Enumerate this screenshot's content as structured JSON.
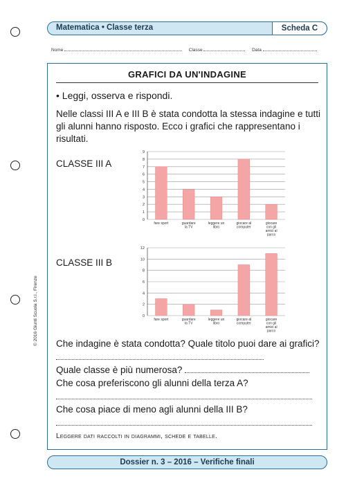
{
  "header": {
    "title": "Matematica • Classe terza",
    "tab": "Scheda C"
  },
  "fields": {
    "name": "Nome",
    "class": "Classe",
    "date": "Data"
  },
  "worksheet": {
    "title": "GRAFICI DA UN'INDAGINE",
    "instruction": "• Leggi, osserva e rispondi.",
    "intro": "Nelle classi III A e III B è stata condotta la stessa indagine e tutti gli alunni hanno risposto. Ecco i grafici che rappresentano i risultati.",
    "chart_a_label": "CLASSE III A",
    "chart_b_label": "CLASSE III B",
    "questions": [
      "Che indagine è stata condotta? Quale titolo puoi dare ai grafici?",
      "Quale classe è più numerosa?",
      "Che cosa preferiscono gli alunni della terza A?",
      "Che cosa piace di meno agli alunni della III B?"
    ],
    "footnote": "Leggere dati raccolti in diagrammi, schede e tabelle."
  },
  "copyright": "© 2016 Giunti Scuola S.r.l., Firenze",
  "footer": "Dossier n. 3 – 2016 – Verifiche finali",
  "chart_data": [
    {
      "type": "bar",
      "title": "CLASSE III A",
      "categories": [
        "fare sport",
        "guardare la TV",
        "leggere un libro",
        "giocare al computer",
        "giocare con gli amici al parco"
      ],
      "values": [
        7,
        4,
        3,
        8,
        2
      ],
      "ylim": [
        0,
        9
      ],
      "yticks": [
        0,
        1,
        2,
        3,
        4,
        5,
        6,
        7,
        8,
        9
      ],
      "grid": true,
      "bar_color": "#f4a6a6"
    },
    {
      "type": "bar",
      "title": "CLASSE III B",
      "categories": [
        "fare sport",
        "guardare la TV",
        "leggere un libro",
        "giocare al computer",
        "giocare con gli amici al parco"
      ],
      "values": [
        3,
        2,
        1,
        9,
        11
      ],
      "ylim": [
        0,
        12
      ],
      "yticks": [
        0,
        2,
        4,
        6,
        8,
        10,
        12
      ],
      "grid": true,
      "bar_color": "#f4a6a6"
    }
  ]
}
